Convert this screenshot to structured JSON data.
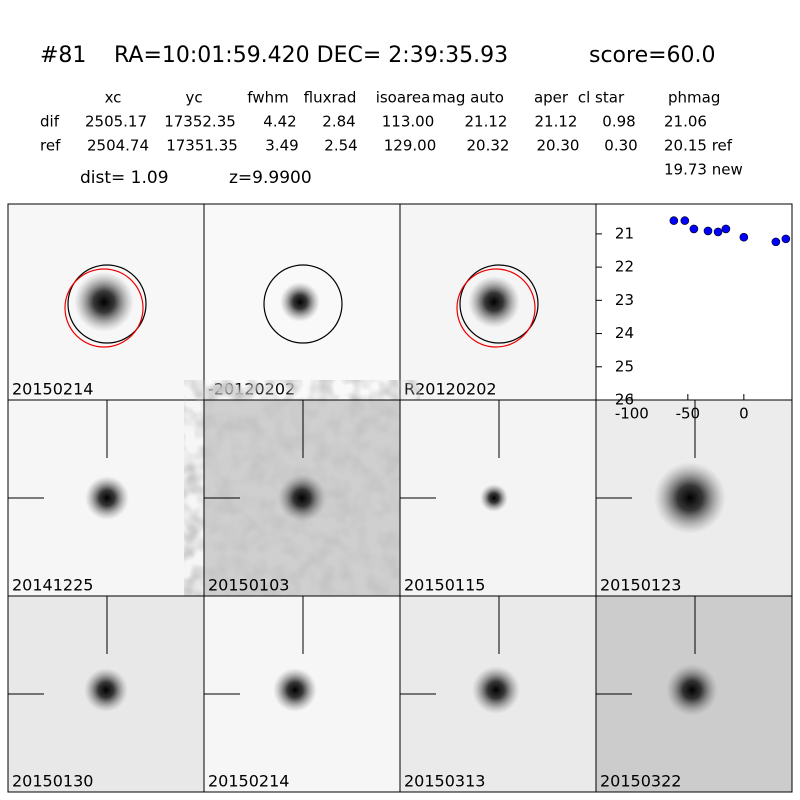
{
  "header": {
    "id": "#81",
    "coords": "RA=10:01:59.420 DEC= 2:39:35.93",
    "score": "score=60.0"
  },
  "table": {
    "header": [
      "xc",
      "yc",
      "fwhm",
      "fluxrad",
      "isoarea",
      "mag auto",
      "aper",
      "cl star",
      "phmag"
    ],
    "rows": [
      [
        "dif",
        "2505.17",
        "17352.35",
        "4.42",
        "2.84",
        "113.00",
        "21.12",
        "21.12",
        "0.98",
        "21.06"
      ],
      [
        "ref",
        "2504.74",
        "17351.35",
        "3.49",
        "2.54",
        "129.00",
        "20.32",
        "20.30",
        "0.30",
        "20.15 ref"
      ]
    ],
    "extra": "19.73 new"
  },
  "dist": "dist=  1.09",
  "z": "z=9.9900",
  "panels": [
    {
      "label": "20150214",
      "label_color": "#000000"
    },
    {
      "label": "-20120202",
      "label_color": "#000000"
    },
    {
      "label": "R20120202",
      "label_color": "#000000"
    },
    {
      "label": "20141225",
      "label_color": "#000000"
    },
    {
      "label": "20150103",
      "label_color": "#000000"
    },
    {
      "label": "20150115",
      "label_color": "#000000"
    },
    {
      "label": "20150123",
      "label_color": "#000000"
    },
    {
      "label": "20150130",
      "label_color": "#000000"
    },
    {
      "label": "20150214",
      "label_color": "#ff0000"
    },
    {
      "label": "20150313",
      "label_color": "#000000"
    },
    {
      "label": "20150322",
      "label_color": "#000000"
    }
  ],
  "chart_data": {
    "type": "scatter",
    "x": [
      -62.5,
      -52.7,
      -44.6,
      -32,
      -23,
      -16,
      0,
      28.6,
      37.5
    ],
    "values": [
      20.6,
      20.6,
      20.85,
      20.91,
      20.94,
      20.85,
      21.1,
      21.24,
      21.15
    ],
    "color": "#0000ff",
    "xlim": [
      -132,
      43
    ],
    "ylim": [
      26,
      20.1
    ],
    "xticks": [
      -100,
      -50,
      0
    ],
    "yticks": [
      21,
      22,
      23,
      24,
      25,
      26
    ]
  }
}
